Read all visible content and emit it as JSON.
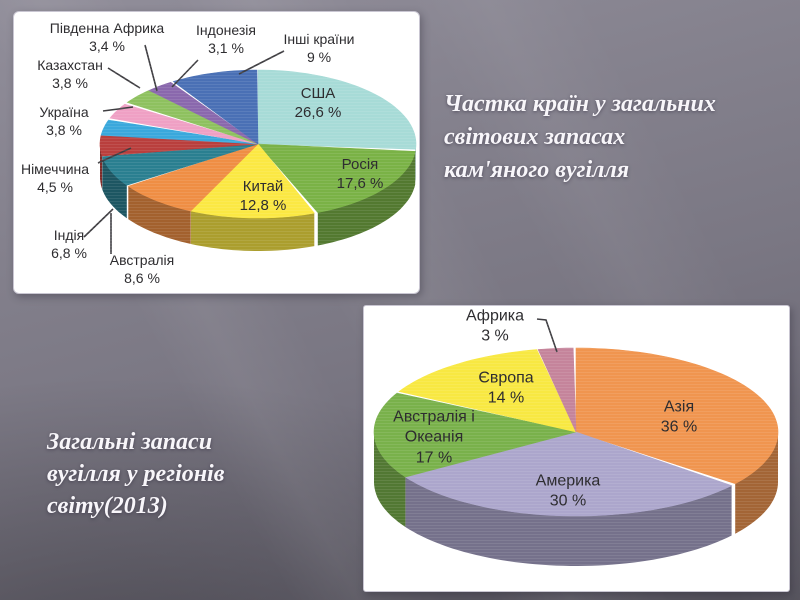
{
  "slide": {
    "titles": {
      "top_right": "Частка країн у загальних\nсвітових запасах\nкам'яного вугілля",
      "bottom_left": "Загальні запаси\nвугілля у регіонів\nсвіту(2013)"
    }
  },
  "chart_data": [
    {
      "type": "pie",
      "style": "3d",
      "title": "Частка країн у загальних світових запасах кам'яного вугілля",
      "unit": "percent",
      "start_angle_deg": 0,
      "direction": "clockwise",
      "slices": [
        {
          "label": "США",
          "value": 26.6,
          "value_label": "26,6 %",
          "color": "#a7dbd7"
        },
        {
          "label": "Росія",
          "value": 17.6,
          "value_label": "17,6 %",
          "color": "#7ab246"
        },
        {
          "label": "Китай",
          "value": 12.8,
          "value_label": "12,8 %",
          "color": "#fbe843"
        },
        {
          "label": "Австралія",
          "value": 8.6,
          "value_label": "8,6 %",
          "color": "#ef8e44"
        },
        {
          "label": "Індія",
          "value": 6.8,
          "value_label": "6,8 %",
          "color": "#2a7f90"
        },
        {
          "label": "Німеччина",
          "value": 4.5,
          "value_label": "4,5 %",
          "color": "#b93f3d"
        },
        {
          "label": "Україна",
          "value": 3.8,
          "value_label": "3,8 %",
          "color": "#3aa8dc"
        },
        {
          "label": "Казахстан",
          "value": 3.8,
          "value_label": "3,8 %",
          "color": "#efa0c4"
        },
        {
          "label": "Південна Африка",
          "value": 3.4,
          "value_label": "3,4 %",
          "color": "#8ec15f"
        },
        {
          "label": "Індонезія",
          "value": 3.1,
          "value_label": "3,1 %",
          "color": "#8a68ad"
        },
        {
          "label": "Інші країни",
          "value": 9,
          "value_label": "9 %",
          "color": "#4a70b5"
        }
      ]
    },
    {
      "type": "pie",
      "style": "3d",
      "title": "Загальні запаси вугілля у регіонів світу(2013)",
      "unit": "percent",
      "start_angle_deg": 0,
      "direction": "clockwise",
      "slices": [
        {
          "label": "Азія",
          "value": 36,
          "value_label": "36 %",
          "color": "#f0954f"
        },
        {
          "label": "Америка",
          "value": 30,
          "value_label": "30 %",
          "color": "#aca6cc"
        },
        {
          "label": "Австралія і\nОкеанія",
          "value": 17,
          "value_label": "17 %",
          "color": "#79b14b"
        },
        {
          "label": "Європа",
          "value": 14,
          "value_label": "14 %",
          "color": "#f8e842"
        },
        {
          "label": "Африка",
          "value": 3,
          "value_label": "3 %",
          "color": "#c5849b"
        }
      ]
    }
  ]
}
